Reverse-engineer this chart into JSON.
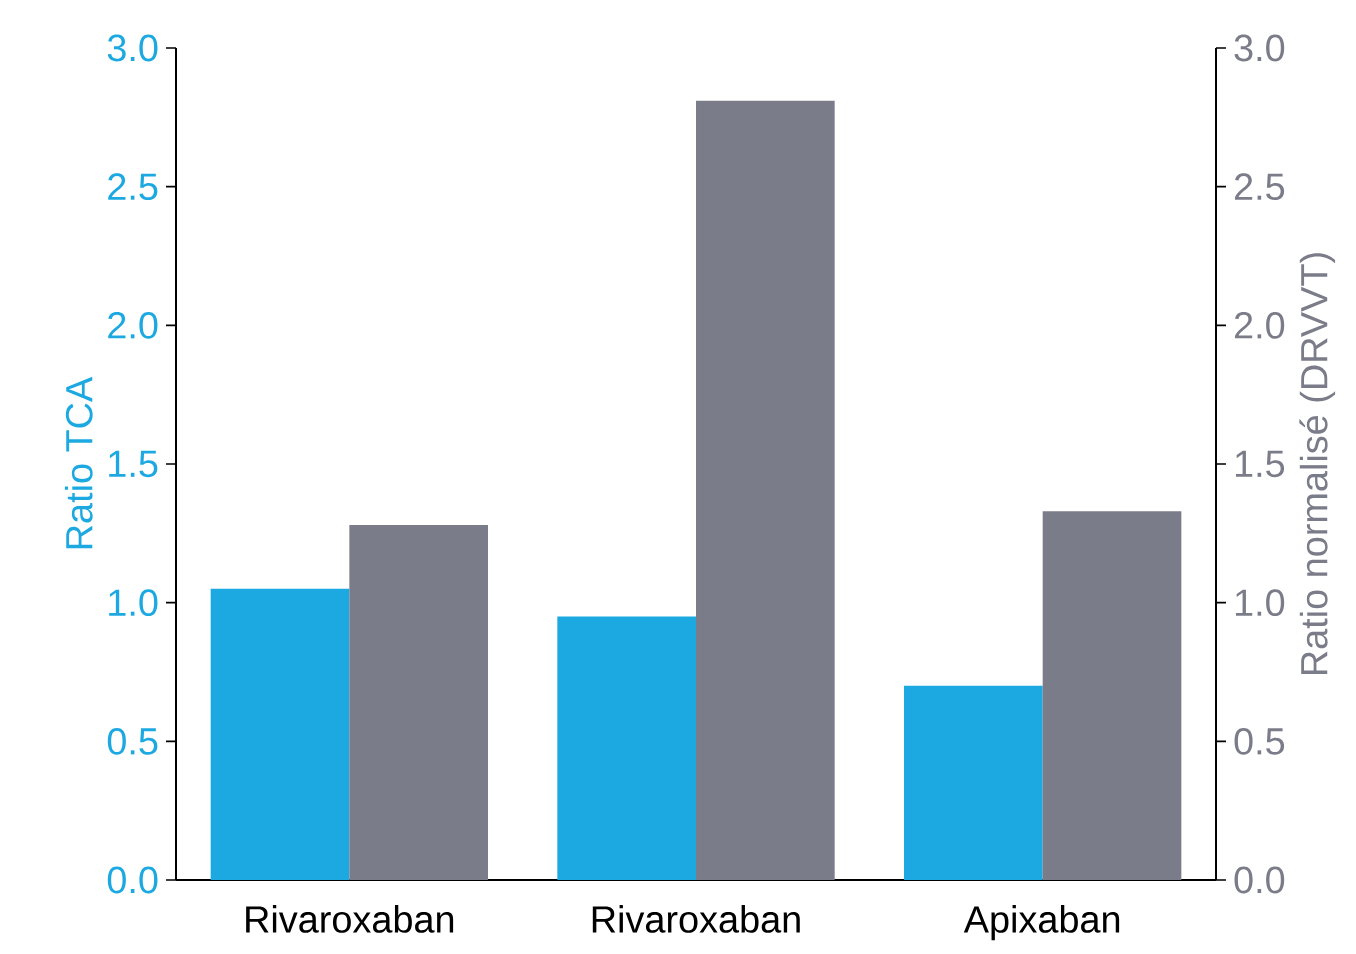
{
  "chart_data": {
    "type": "bar",
    "categories": [
      "Rivaroxaban",
      "Rivaroxaban",
      "Apixaban"
    ],
    "series": [
      {
        "color": "#1ca9e1",
        "values": [
          1.05,
          0.95,
          0.7
        ]
      },
      {
        "color": "#7b7c89",
        "values": [
          1.28,
          2.81,
          1.33
        ],
        "axis": "y2"
      }
    ],
    "ylabel": "Ratio TCA",
    "y2label": "Ratio normalisé (DRVVT)",
    "ylim": [
      0,
      3
    ],
    "y2lim": [
      0,
      3
    ],
    "yticks": [
      {
        "value": 0,
        "label": "0.0"
      },
      {
        "value": 0.5,
        "label": "0.5"
      },
      {
        "value": 1,
        "label": "1.0"
      },
      {
        "value": 1.5,
        "label": "1.5"
      },
      {
        "value": 2,
        "label": "2.0"
      },
      {
        "value": 2.5,
        "label": "2.5"
      },
      {
        "value": 3,
        "label": "3.0"
      }
    ],
    "y2ticks": [
      {
        "value": 0,
        "label": "0.0"
      },
      {
        "value": 0.5,
        "label": "0.5"
      },
      {
        "value": 1,
        "label": "1.0"
      },
      {
        "value": 1.5,
        "label": "1.5"
      },
      {
        "value": 2,
        "label": "2.0"
      },
      {
        "value": 2.5,
        "label": "2.5"
      },
      {
        "value": 3,
        "label": "3.0"
      }
    ],
    "grid": false
  }
}
